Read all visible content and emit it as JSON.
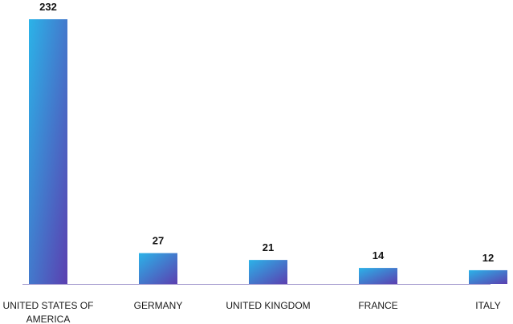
{
  "chart_data": {
    "type": "bar",
    "title": "",
    "xlabel": "",
    "ylabel": "",
    "categories": [
      [
        "UNITED STATES OF",
        "AMERICA"
      ],
      [
        "GERMANY"
      ],
      [
        "UNITED KINGDOM"
      ],
      [
        "FRANCE"
      ],
      [
        "ITALY"
      ]
    ],
    "values": [
      232,
      27,
      21,
      14,
      12
    ],
    "data_labels": [
      "232",
      "27",
      "21",
      "14",
      "12"
    ],
    "ylim": [
      0,
      232
    ],
    "grid": false,
    "legend": "none",
    "colors": {
      "bar_gradient_start": "#2bb3e8",
      "bar_gradient_end": "#5b3fb0",
      "axis": "#9a8fc9"
    }
  }
}
